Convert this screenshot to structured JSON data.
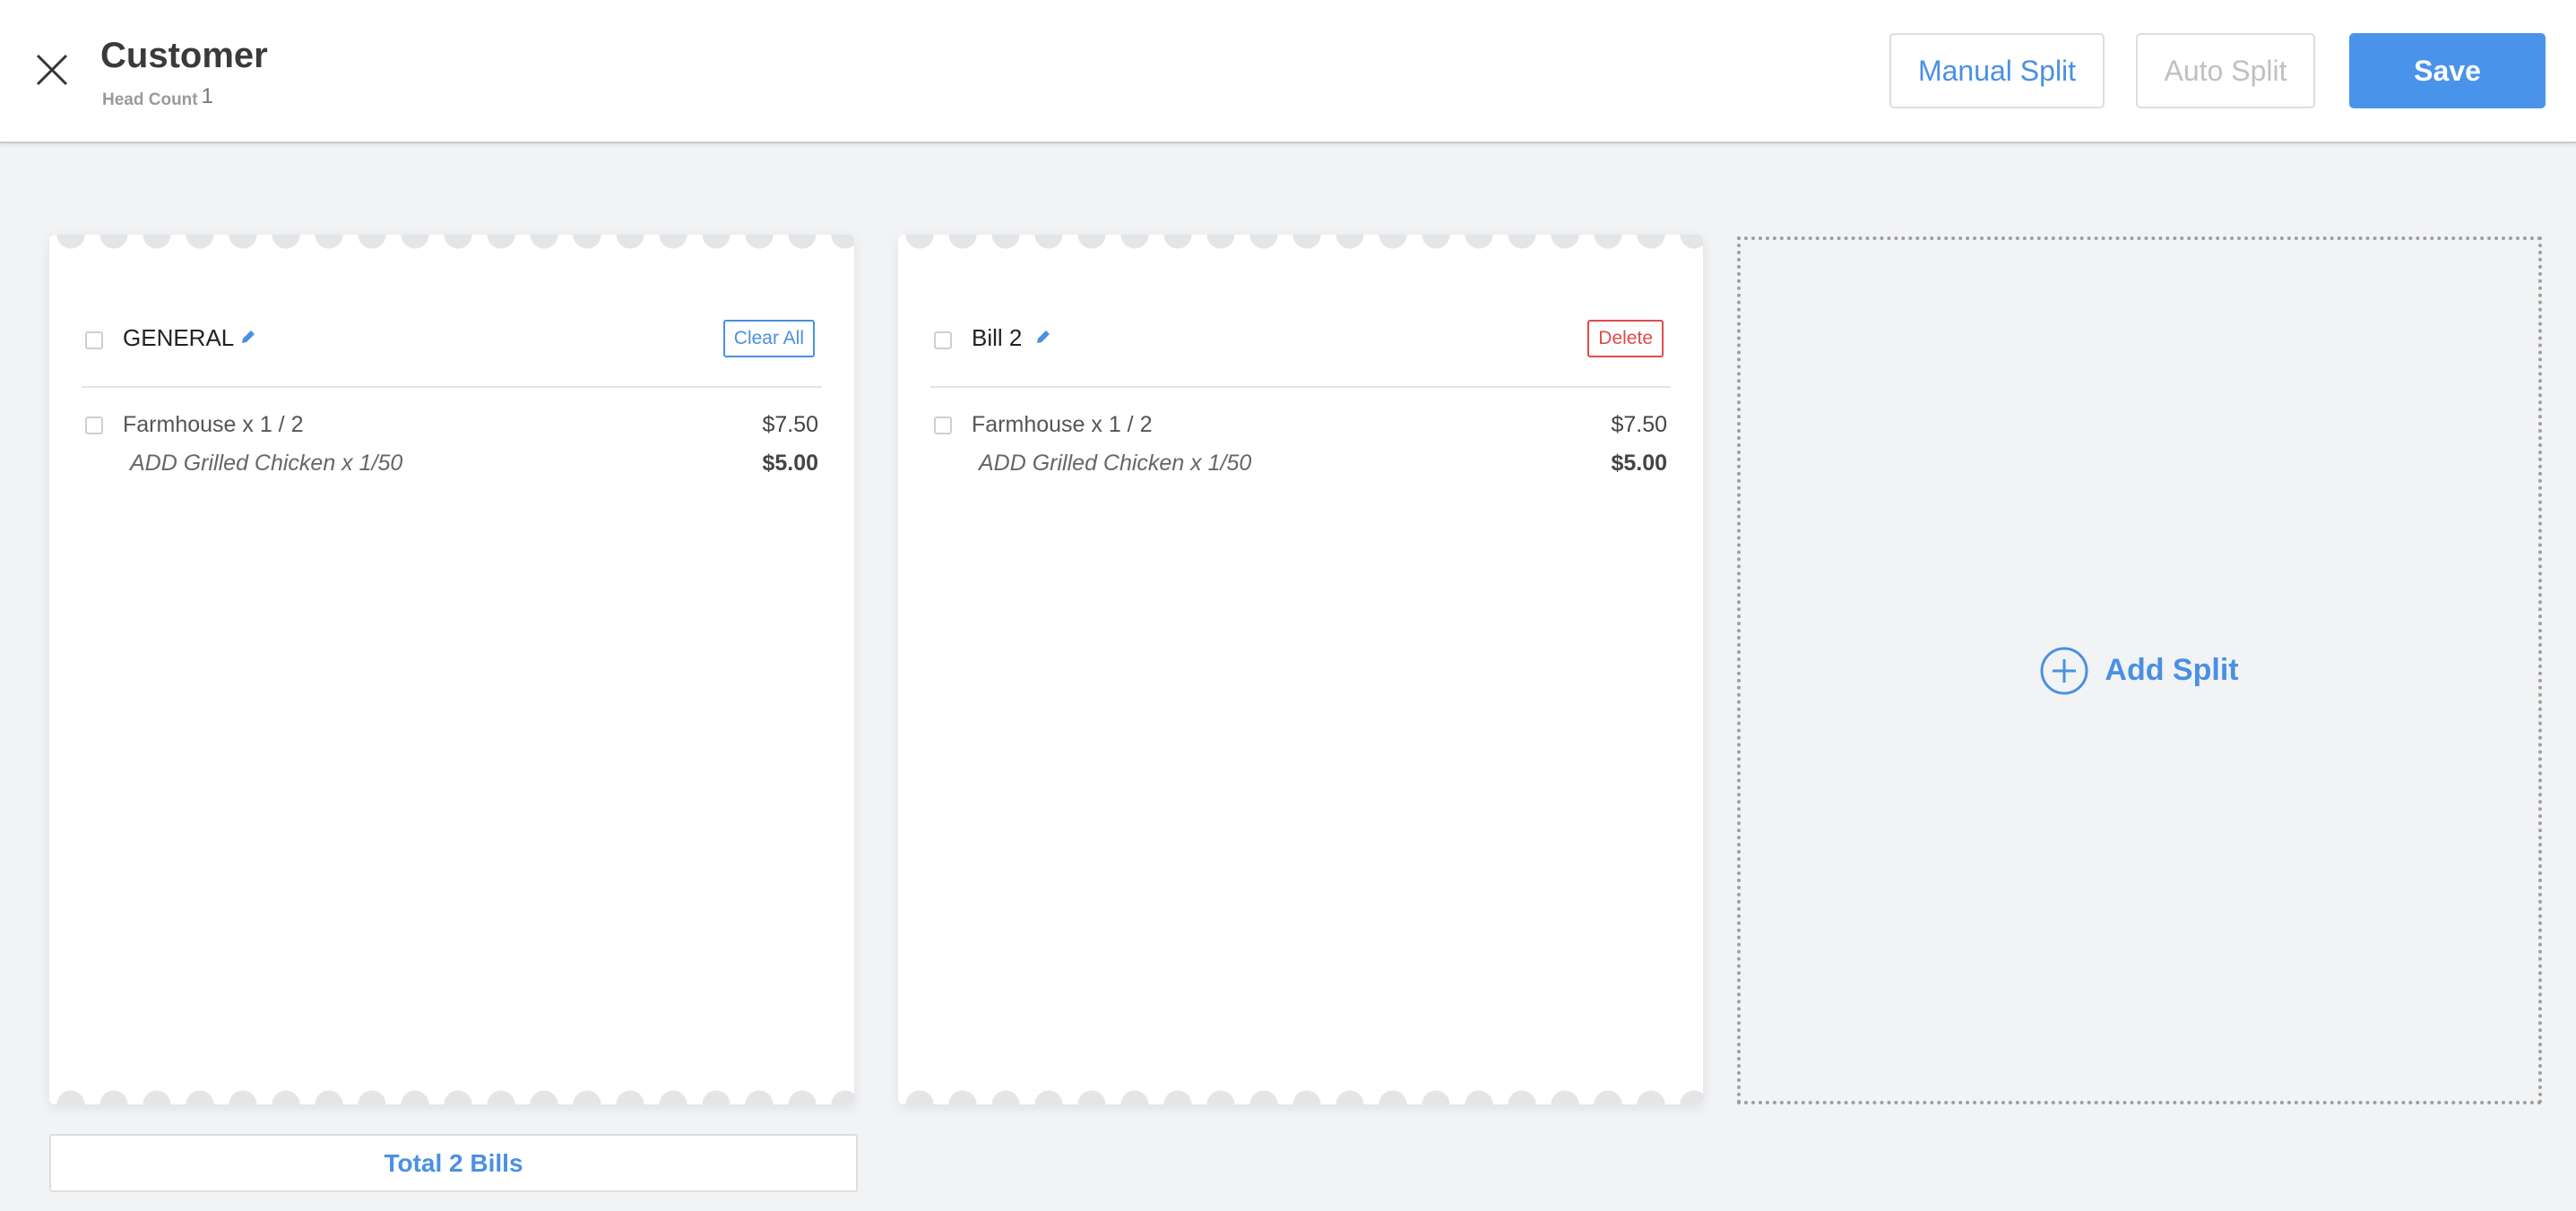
{
  "header": {
    "title": "Customer",
    "head_count_label": "Head Count",
    "head_count": "1",
    "manual_split": "Manual Split",
    "auto_split": "Auto Split",
    "save": "Save"
  },
  "bills": [
    {
      "name": "GENERAL",
      "action": "Clear All",
      "items": [
        {
          "name": "Farmhouse x 1 / 2",
          "price": "$7.50",
          "addon": "ADD Grilled Chicken x 1/50",
          "addon_price": "$5.00"
        }
      ]
    },
    {
      "name": "Bill 2",
      "action": "Delete",
      "items": [
        {
          "name": "Farmhouse x 1 / 2",
          "price": "$7.50",
          "addon": "ADD Grilled Chicken x 1/50",
          "addon_price": "$5.00"
        }
      ]
    }
  ],
  "add_split": "Add Split",
  "total": "Total 2 Bills",
  "colors": {
    "accent": "#4a90e2",
    "danger": "#e04b4b"
  }
}
